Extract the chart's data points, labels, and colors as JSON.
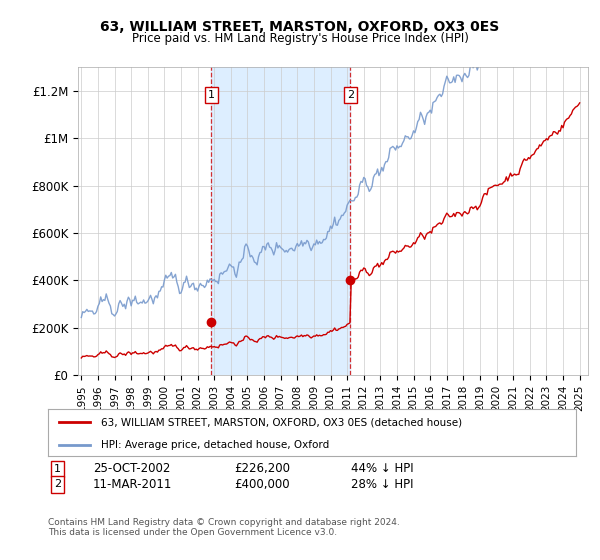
{
  "title": "63, WILLIAM STREET, MARSTON, OXFORD, OX3 0ES",
  "subtitle": "Price paid vs. HM Land Registry's House Price Index (HPI)",
  "legend_line1": "63, WILLIAM STREET, MARSTON, OXFORD, OX3 0ES (detached house)",
  "legend_line2": "HPI: Average price, detached house, Oxford",
  "footnote": "Contains HM Land Registry data © Crown copyright and database right 2024.\nThis data is licensed under the Open Government Licence v3.0.",
  "sale1_date": "25-OCT-2002",
  "sale1_price": "£226,200",
  "sale1_hpi": "44% ↓ HPI",
  "sale2_date": "11-MAR-2011",
  "sale2_price": "£400,000",
  "sale2_hpi": "28% ↓ HPI",
  "sale1_x": 2002.82,
  "sale1_y": 226200,
  "sale2_x": 2011.19,
  "sale2_y": 400000,
  "hpi_color": "#7799cc",
  "price_color": "#cc0000",
  "shade_color": "#ddeeff",
  "ylim": [
    0,
    1300000
  ],
  "xlim_start": 1994.8,
  "xlim_end": 2025.5,
  "yticks": [
    0,
    200000,
    400000,
    600000,
    800000,
    1000000,
    1200000
  ],
  "ytick_labels": [
    "£0",
    "£200K",
    "£400K",
    "£600K",
    "£800K",
    "£1M",
    "£1.2M"
  ],
  "xticks": [
    1995,
    1996,
    1997,
    1998,
    1999,
    2000,
    2001,
    2002,
    2003,
    2004,
    2005,
    2006,
    2007,
    2008,
    2009,
    2010,
    2011,
    2012,
    2013,
    2014,
    2015,
    2016,
    2017,
    2018,
    2019,
    2020,
    2021,
    2022,
    2023,
    2024,
    2025
  ]
}
